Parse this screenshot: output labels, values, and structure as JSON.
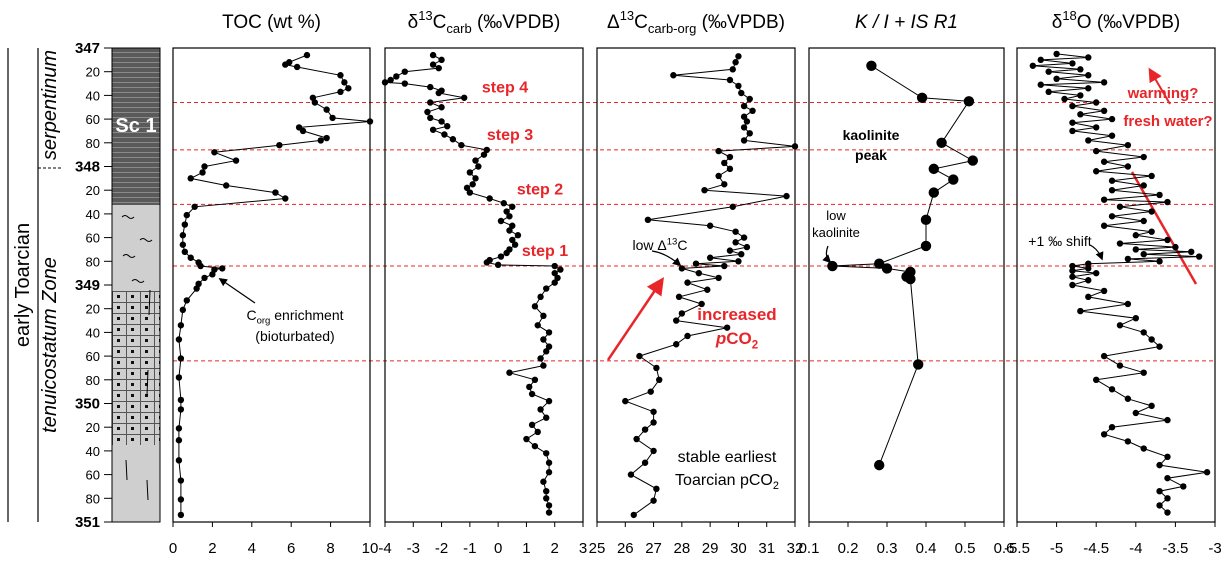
{
  "depth_axis": {
    "ylim": [
      347,
      351
    ],
    "yticks": [
      347,
      {
        "value": 347.2,
        "label": "20"
      },
      {
        "value": 347.4,
        "label": "40"
      },
      {
        "value": 347.6,
        "label": "60"
      },
      {
        "value": 347.8,
        "label": "80"
      },
      348,
      {
        "value": 348.2,
        "label": "20"
      },
      {
        "value": 348.4,
        "label": "40"
      },
      {
        "value": 348.6,
        "label": "60"
      },
      {
        "value": 348.8,
        "label": "80"
      },
      349,
      {
        "value": 349.2,
        "label": "20"
      },
      {
        "value": 349.4,
        "label": "40"
      },
      {
        "value": 349.6,
        "label": "60"
      },
      {
        "value": 349.8,
        "label": "80"
      },
      350,
      {
        "value": 350.2,
        "label": "20"
      },
      {
        "value": 350.4,
        "label": "40"
      },
      {
        "value": 350.6,
        "label": "60"
      },
      {
        "value": 350.8,
        "label": "80"
      },
      351
    ]
  },
  "column": {
    "unit_label": "Sc 1",
    "zones": [
      "serpentinum",
      "tenuicostatum Zone"
    ],
    "stage": "early Toarcian"
  },
  "horizons": [
    347.46,
    347.86,
    348.32,
    348.84,
    349.64
  ],
  "horizon_color": "#e8262a",
  "step_labels": [
    "step 4",
    "step 3",
    "step 2",
    "step 1"
  ],
  "chart_data": [
    {
      "type": "line",
      "title": [
        {
          "text": "TOC (wt %)"
        }
      ],
      "xlim": [
        0,
        10
      ],
      "xticks": [
        0,
        2,
        4,
        6,
        8,
        10
      ],
      "color": "#000000",
      "depth": [
        347.06,
        347.12,
        347.14,
        347.16,
        347.23,
        347.29,
        347.34,
        347.37,
        347.42,
        347.46,
        347.52,
        347.59,
        347.62,
        347.67,
        347.7,
        347.76,
        347.78,
        347.82,
        347.88,
        347.95,
        348.0,
        348.05,
        348.1,
        348.16,
        348.22,
        348.27,
        348.34,
        348.41,
        348.49,
        348.58,
        348.66,
        348.72,
        348.77,
        348.81,
        348.84,
        348.86,
        348.87,
        348.91,
        348.94,
        348.99,
        349.03,
        349.13,
        349.21,
        349.34,
        349.46,
        349.62,
        349.78,
        349.97,
        350.05,
        350.21,
        350.31,
        350.48,
        350.65,
        350.81,
        350.94
      ],
      "values": [
        6.8,
        5.9,
        5.7,
        6.3,
        8.5,
        8.7,
        8.9,
        8.5,
        7.1,
        7.2,
        7.8,
        8.1,
        10,
        6.4,
        6.6,
        7.8,
        7.5,
        5.4,
        2.1,
        3.2,
        1.6,
        1.5,
        0.9,
        2.7,
        5.2,
        5.7,
        1.1,
        0.7,
        0.6,
        0.5,
        0.5,
        0.6,
        0.9,
        1.3,
        1.4,
        2.5,
        2.1,
        2.0,
        1.6,
        1.3,
        1.2,
        0.7,
        0.5,
        0.4,
        0.3,
        0.4,
        0.3,
        0.4,
        0.4,
        0.3,
        0.3,
        0.3,
        0.4,
        0.4,
        0.4
      ],
      "annotations": [
        {
          "lines": [
            [
              {
                "text": "C"
              },
              {
                "text": "org",
                "script": "sub"
              },
              {
                "text": " enrichment"
              }
            ],
            [
              {
                "text": "(bioturbated)"
              }
            ]
          ],
          "color": "#000000"
        }
      ]
    },
    {
      "type": "line",
      "title": [
        {
          "text": "δ"
        },
        {
          "text": "13",
          "script": "super"
        },
        {
          "text": "C"
        },
        {
          "text": "carb",
          "script": "sub"
        },
        {
          "text": " (‰VPDB)"
        }
      ],
      "xlim": [
        -4,
        3
      ],
      "xticks": [
        -4,
        -3,
        -2,
        -1,
        0,
        1,
        2,
        3
      ],
      "color": "#000000",
      "depth": [
        347.06,
        347.1,
        347.14,
        347.17,
        347.2,
        347.24,
        347.27,
        347.29,
        347.3,
        347.33,
        347.36,
        347.38,
        347.42,
        347.46,
        347.5,
        347.54,
        347.59,
        347.62,
        347.66,
        347.69,
        347.73,
        347.77,
        347.82,
        347.86,
        347.9,
        347.95,
        348.0,
        348.05,
        348.1,
        348.15,
        348.18,
        348.22,
        348.27,
        348.31,
        348.34,
        348.38,
        348.42,
        348.46,
        348.5,
        348.54,
        348.58,
        348.62,
        348.66,
        348.7,
        348.73,
        348.76,
        348.79,
        348.81,
        348.83,
        348.84,
        348.87,
        348.9,
        348.94,
        348.98,
        349.03,
        349.1,
        349.18,
        349.26,
        349.34,
        349.4,
        349.46,
        349.52,
        349.56,
        349.62,
        349.68,
        349.74,
        349.8,
        349.86,
        349.92,
        349.98,
        350.05,
        350.12,
        350.18,
        350.24,
        350.3,
        350.36,
        350.42,
        350.5,
        350.58,
        350.66,
        350.74,
        350.8,
        350.86,
        350.92
      ],
      "values": [
        -2.3,
        -2.0,
        -2.3,
        -2.1,
        -3.3,
        -3.6,
        -3.8,
        -4.0,
        -3.3,
        -2.4,
        -2.0,
        -2.1,
        -1.2,
        -2.4,
        -2.0,
        -2.5,
        -2.4,
        -2.0,
        -1.8,
        -2.3,
        -1.9,
        -1.6,
        -1.3,
        -0.4,
        -0.5,
        -0.8,
        -0.7,
        -1.0,
        -0.8,
        -0.9,
        -1.1,
        -1.0,
        -0.3,
        0.2,
        0.5,
        0.3,
        0.4,
        0.1,
        0.5,
        0.4,
        0.7,
        0.5,
        0.6,
        0.4,
        0.3,
        0.1,
        -0.3,
        -0.4,
        0.0,
        2.0,
        2.2,
        2.0,
        2.1,
        2.0,
        1.7,
        1.5,
        1.3,
        1.6,
        1.4,
        1.8,
        1.6,
        1.8,
        1.7,
        1.5,
        1.6,
        0.4,
        1.3,
        1.1,
        1.2,
        1.8,
        1.5,
        1.7,
        1.2,
        1.4,
        1.0,
        1.3,
        1.7,
        1.8,
        1.8,
        1.6,
        1.7,
        1.7,
        1.8,
        1.8
      ],
      "annotations": []
    },
    {
      "type": "line",
      "title": [
        {
          "text": "Δ"
        },
        {
          "text": "13",
          "script": "super"
        },
        {
          "text": "C"
        },
        {
          "text": "carb-org",
          "script": "sub"
        },
        {
          "text": " (‰VPDB)"
        }
      ],
      "xlim": [
        25,
        32
      ],
      "xticks": [
        25,
        26,
        27,
        28,
        29,
        30,
        31,
        32
      ],
      "color": "#000000",
      "depth": [
        347.07,
        347.12,
        347.18,
        347.23,
        347.27,
        347.32,
        347.38,
        347.43,
        347.49,
        347.53,
        347.58,
        347.62,
        347.67,
        347.72,
        347.78,
        347.83,
        347.87,
        347.92,
        347.97,
        348.02,
        348.08,
        348.15,
        348.2,
        348.25,
        348.34,
        348.45,
        348.5,
        348.55,
        348.6,
        348.64,
        348.68,
        348.71,
        348.74,
        348.77,
        348.8,
        348.82,
        348.84,
        348.86,
        348.9,
        348.94,
        348.98,
        349.04,
        349.1,
        349.16,
        349.24,
        349.3,
        349.36,
        349.43,
        349.5,
        349.6,
        349.7,
        349.8,
        349.9,
        349.98,
        350.07,
        350.16,
        350.22,
        350.3,
        350.4,
        350.5,
        350.6,
        350.72,
        350.82,
        350.94
      ],
      "values": [
        30.0,
        29.9,
        29.8,
        27.7,
        29.7,
        30.0,
        30.1,
        30.4,
        30.2,
        30.5,
        30.2,
        30.3,
        30.2,
        30.4,
        30.2,
        32.0,
        29.3,
        29.7,
        29.5,
        29.7,
        29.3,
        29.5,
        28.8,
        31.7,
        29.8,
        26.8,
        29.0,
        29.9,
        30.2,
        29.9,
        30.3,
        29.7,
        30.1,
        29.0,
        30.0,
        28.5,
        29.5,
        28.0,
        28.6,
        29.3,
        28.2,
        28.9,
        27.9,
        28.7,
        28.0,
        27.8,
        29.6,
        28.2,
        27.8,
        26.5,
        27.1,
        27.2,
        26.9,
        26.0,
        27.0,
        27.0,
        26.7,
        26.4,
        27.0,
        26.7,
        26.2,
        27.1,
        27.0,
        26.3
      ],
      "annotations": [
        {
          "lines": [
            [
              {
                "text": "low Δ"
              },
              {
                "text": "13",
                "script": "super"
              },
              {
                "text": "C"
              }
            ]
          ],
          "color": "#000000"
        },
        {
          "lines": [
            [
              {
                "text": "increased"
              }
            ],
            [
              {
                "text": "p",
                "style": "italic"
              },
              {
                "text": "CO"
              },
              {
                "text": "2",
                "script": "sub"
              }
            ]
          ],
          "color": "#e8262a",
          "weight": "bold"
        },
        {
          "lines": [
            [
              {
                "text": "stable earliest"
              }
            ],
            [
              {
                "text": "Toarcian pCO"
              },
              {
                "text": "2",
                "script": "sub"
              }
            ]
          ],
          "color": "#000000"
        }
      ]
    },
    {
      "type": "line",
      "title": [
        {
          "text": "K / I + IS R1",
          "style": "italic"
        }
      ],
      "xlim": [
        0.1,
        0.6
      ],
      "xticks": [
        0.1,
        0.2,
        0.3,
        0.4,
        0.5,
        0.6
      ],
      "color": "#000000",
      "depth": [
        347.15,
        347.42,
        347.45,
        347.8,
        347.95,
        348.02,
        348.11,
        348.22,
        348.45,
        348.67,
        348.82,
        348.84,
        348.86,
        348.89,
        348.93,
        348.95,
        349.67,
        350.52
      ],
      "values": [
        0.26,
        0.39,
        0.51,
        0.44,
        0.52,
        0.42,
        0.47,
        0.42,
        0.4,
        0.4,
        0.28,
        0.16,
        0.3,
        0.36,
        0.35,
        0.36,
        0.38,
        0.28
      ],
      "annotations": [
        {
          "lines": [
            [
              {
                "text": "kaolinite"
              }
            ],
            [
              {
                "text": "peak"
              }
            ]
          ],
          "color": "#000000",
          "weight": "bold"
        },
        {
          "lines": [
            [
              {
                "text": "low"
              }
            ],
            [
              {
                "text": "kaolinite"
              }
            ]
          ],
          "color": "#000000"
        }
      ]
    },
    {
      "type": "line",
      "title": [
        {
          "text": "δ"
        },
        {
          "text": "18",
          "script": "super"
        },
        {
          "text": "O (‰VPDB)"
        }
      ],
      "xlim": [
        -5.5,
        -3
      ],
      "xticks": [
        -5.5,
        -5,
        -4.5,
        -4,
        -3.5,
        -3
      ],
      "color": "#000000",
      "depth": [
        347.05,
        347.08,
        347.1,
        347.13,
        347.15,
        347.18,
        347.2,
        347.23,
        347.26,
        347.29,
        347.31,
        347.34,
        347.37,
        347.4,
        347.43,
        347.46,
        347.49,
        347.53,
        347.56,
        347.6,
        347.63,
        347.67,
        347.7,
        347.74,
        347.78,
        347.82,
        347.87,
        347.92,
        347.96,
        348.0,
        348.04,
        348.08,
        348.12,
        348.16,
        348.2,
        348.24,
        348.28,
        348.3,
        348.34,
        348.38,
        348.42,
        348.46,
        348.5,
        348.55,
        348.58,
        348.62,
        348.65,
        348.68,
        348.7,
        348.72,
        348.74,
        348.76,
        348.78,
        348.8,
        348.82,
        348.84,
        348.86,
        348.88,
        348.9,
        348.93,
        348.96,
        349.0,
        349.05,
        349.1,
        349.16,
        349.22,
        349.28,
        349.34,
        349.4,
        349.46,
        349.52,
        349.6,
        349.68,
        349.74,
        349.8,
        349.88,
        349.96,
        350.02,
        350.08,
        350.14,
        350.2,
        350.26,
        350.32,
        350.38,
        350.45,
        350.52,
        350.58,
        350.63,
        350.7,
        350.74,
        350.8,
        350.86,
        350.92
      ],
      "values": [
        -5.0,
        -4.6,
        -5.2,
        -4.8,
        -5.3,
        -4.7,
        -5.1,
        -4.6,
        -5.0,
        -4.4,
        -5.2,
        -4.6,
        -5.1,
        -4.7,
        -4.9,
        -4.5,
        -4.8,
        -4.4,
        -4.7,
        -4.3,
        -4.8,
        -4.5,
        -4.8,
        -4.3,
        -4.6,
        -4.1,
        -4.5,
        -3.9,
        -4.4,
        -4.1,
        -4.5,
        -3.8,
        -4.3,
        -3.9,
        -4.3,
        -3.7,
        -4.4,
        -3.6,
        -4.2,
        -3.8,
        -4.3,
        -3.9,
        -4.4,
        -3.8,
        -4.0,
        -3.6,
        -4.2,
        -3.5,
        -4.0,
        -3.3,
        -3.9,
        -3.2,
        -4.1,
        -3.7,
        -4.6,
        -4.8,
        -4.6,
        -4.8,
        -4.5,
        -4.8,
        -4.6,
        -4.8,
        -4.4,
        -4.6,
        -4.1,
        -4.7,
        -4.0,
        -4.2,
        -3.9,
        -3.8,
        -3.7,
        -4.4,
        -4.2,
        -3.9,
        -4.5,
        -4.3,
        -4.1,
        -3.8,
        -4.0,
        -3.6,
        -4.3,
        -4.4,
        -4.1,
        -3.9,
        -3.6,
        -3.7,
        -3.1,
        -3.6,
        -3.4,
        -3.7,
        -3.6,
        -3.7,
        -3.6
      ],
      "annotations": [
        {
          "lines": [
            [
              {
                "text": "+1 ‰ shift"
              }
            ]
          ],
          "color": "#000000"
        },
        {
          "lines": [
            [
              {
                "text": "warming?"
              }
            ]
          ],
          "color": "#e8262a",
          "weight": "bold"
        },
        {
          "lines": [
            [
              {
                "text": "fresh water?"
              }
            ]
          ],
          "color": "#e8262a",
          "weight": "bold"
        }
      ]
    }
  ]
}
